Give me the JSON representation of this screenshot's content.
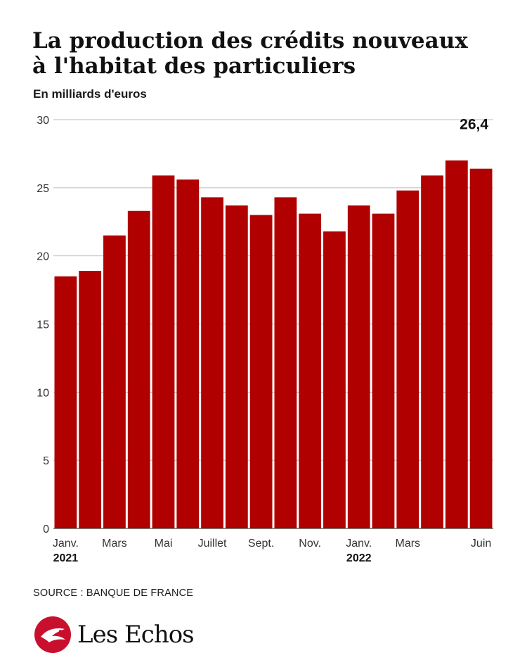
{
  "header": {
    "title_line1": "La production des crédits nouveaux",
    "title_line2": "à l'habitat des particuliers",
    "subtitle": "En milliards d'euros"
  },
  "chart_data": {
    "type": "bar",
    "title": "La production des crédits nouveaux à l'habitat des particuliers",
    "ylabel": "En milliards d'euros",
    "xlabel": "",
    "ylim": [
      0,
      30
    ],
    "yticks": [
      0,
      5,
      10,
      15,
      20,
      25,
      30
    ],
    "grid": true,
    "months": [
      "2021-01",
      "2021-02",
      "2021-03",
      "2021-04",
      "2021-05",
      "2021-06",
      "2021-07",
      "2021-08",
      "2021-09",
      "2021-10",
      "2021-11",
      "2021-12",
      "2022-01",
      "2022-02",
      "2022-03",
      "2022-04",
      "2022-05",
      "2022-06"
    ],
    "values": [
      18.5,
      18.9,
      21.5,
      23.3,
      25.9,
      25.6,
      24.3,
      23.7,
      23.0,
      24.3,
      23.1,
      21.8,
      23.7,
      23.1,
      24.8,
      25.9,
      27.0,
      26.4
    ],
    "x_tick_labels": [
      {
        "index": 0,
        "label": "Janv.",
        "year": "2021"
      },
      {
        "index": 2,
        "label": "Mars"
      },
      {
        "index": 4,
        "label": "Mai"
      },
      {
        "index": 6,
        "label": "Juillet"
      },
      {
        "index": 8,
        "label": "Sept."
      },
      {
        "index": 10,
        "label": "Nov."
      },
      {
        "index": 12,
        "label": "Janv.",
        "year": "2022"
      },
      {
        "index": 14,
        "label": "Mars"
      },
      {
        "index": 17,
        "label": "Juin"
      }
    ],
    "annotations": [
      {
        "index": 17,
        "text": "26,4"
      }
    ],
    "bar_color": "#b00000"
  },
  "footer": {
    "source": "SOURCE : BANQUE DE FRANCE",
    "logo_text": "Les Echos"
  },
  "colors": {
    "bar": "#b00000",
    "logo_red": "#c8102e",
    "text": "#111111",
    "grid": "#bbbbbb"
  }
}
